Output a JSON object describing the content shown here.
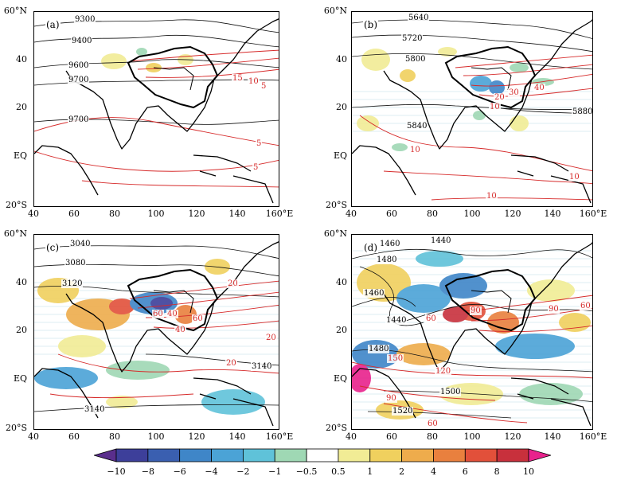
{
  "panels": [
    {
      "label": "(a)",
      "lat_ticks": [
        "60°N",
        "40",
        "20",
        "EQ",
        "20°S"
      ],
      "lon_ticks": [
        "40",
        "60",
        "80",
        "100",
        "120",
        "140",
        "160°E"
      ],
      "black_labels": [
        "9300",
        "9400",
        "9600",
        "9700",
        "9700"
      ],
      "red_labels": [
        "15",
        "10",
        "5",
        "5",
        "5"
      ]
    },
    {
      "label": "(b)",
      "lat_ticks": [
        "60°N",
        "40",
        "20",
        "EQ",
        "20°S"
      ],
      "lon_ticks": [
        "40",
        "60",
        "80",
        "100",
        "120",
        "140",
        "160°E"
      ],
      "black_labels": [
        "5640",
        "5720",
        "5800",
        "5840",
        "5880"
      ],
      "red_labels": [
        "40",
        "30",
        "20",
        "10",
        "10",
        "10",
        "10"
      ]
    },
    {
      "label": "(c)",
      "lat_ticks": [
        "60°N",
        "40",
        "20",
        "EQ",
        "20°S"
      ],
      "lon_ticks": [
        "40",
        "60",
        "80",
        "100",
        "120",
        "140",
        "160°E"
      ],
      "black_labels": [
        "3040",
        "3080",
        "3120",
        "3140",
        "3140"
      ],
      "red_labels": [
        "20",
        "60",
        "40",
        "60",
        "40",
        "20",
        "20"
      ]
    },
    {
      "label": "(d)",
      "lat_ticks": [
        "60°N",
        "40",
        "20",
        "EQ",
        "20°S"
      ],
      "lon_ticks": [
        "40",
        "60",
        "80",
        "100",
        "120",
        "140",
        "160°E"
      ],
      "black_labels": [
        "1460",
        "1440",
        "1480",
        "1460",
        "1440",
        "1480",
        "1500",
        "1520"
      ],
      "red_labels": [
        "90",
        "60",
        "90",
        "60",
        "150",
        "120",
        "90",
        "60"
      ]
    }
  ],
  "colorbar": {
    "ticks": [
      "−10",
      "−8",
      "−6",
      "−4",
      "−2",
      "−1",
      "−0.5",
      "0.5",
      "1",
      "2",
      "4",
      "6",
      "8",
      "10"
    ],
    "colors": [
      "#3d3f9a",
      "#3a5fb0",
      "#3f86c8",
      "#4ba3d6",
      "#5fc2d9",
      "#9fd8b4",
      "#ffffff",
      "#f1ec95",
      "#f0d05e",
      "#eeac4c",
      "#e9803e",
      "#e2503a",
      "#c8303c"
    ],
    "low_end_color": "#5a2e8c",
    "high_end_color": "#e8228c"
  }
}
